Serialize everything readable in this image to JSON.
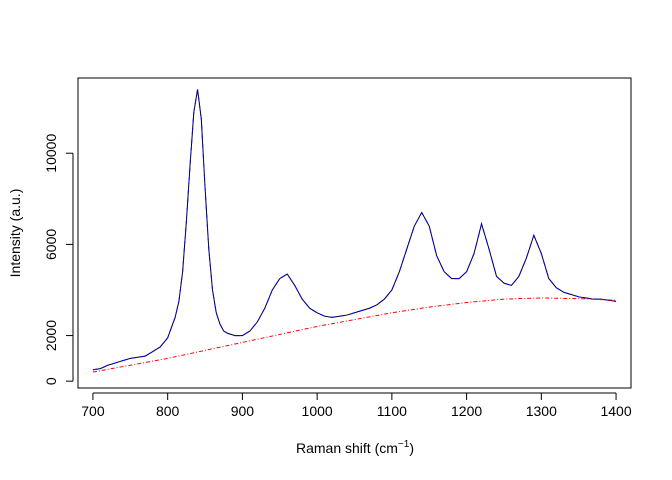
{
  "chart_data": {
    "type": "line",
    "title": "",
    "xlabel": "Raman shift (cm",
    "xlabel_superscript": "−1",
    "xlabel_suffix": ")",
    "ylabel": "Intensity (a.u.)",
    "xlim": [
      680,
      1420
    ],
    "ylim": [
      -300,
      13300
    ],
    "x_ticks": [
      700,
      800,
      900,
      1000,
      1100,
      1200,
      1300,
      1400
    ],
    "y_ticks": [
      0,
      2000,
      6000,
      10000
    ],
    "grid": false,
    "legend": "none",
    "series": [
      {
        "style": "solid",
        "color": "#000000",
        "x": [
          700,
          710,
          720,
          730,
          740,
          750,
          760,
          770,
          780,
          790,
          800,
          810,
          815,
          820,
          825,
          830,
          835,
          840,
          845,
          850,
          855,
          860,
          865,
          870,
          875,
          880,
          890,
          900,
          910,
          920,
          930,
          940,
          950,
          960,
          970,
          980,
          990,
          1000,
          1010,
          1020,
          1030,
          1040,
          1050,
          1060,
          1070,
          1080,
          1090,
          1100,
          1110,
          1120,
          1130,
          1140,
          1150,
          1160,
          1170,
          1180,
          1190,
          1200,
          1210,
          1220,
          1230,
          1240,
          1250,
          1260,
          1270,
          1280,
          1290,
          1300,
          1310,
          1320,
          1330,
          1340,
          1350,
          1360,
          1370,
          1380,
          1390,
          1400
        ],
        "values": [
          500,
          550,
          700,
          800,
          900,
          1000,
          1050,
          1100,
          1300,
          1500,
          1900,
          2800,
          3500,
          4800,
          7000,
          9500,
          11800,
          12800,
          11500,
          8500,
          5800,
          4000,
          3000,
          2500,
          2200,
          2100,
          2000,
          2000,
          2200,
          2600,
          3200,
          4000,
          4500,
          4700,
          4200,
          3600,
          3200,
          3000,
          2850,
          2800,
          2850,
          2900,
          3000,
          3100,
          3200,
          3350,
          3600,
          4000,
          4800,
          5800,
          6800,
          7400,
          6800,
          5500,
          4800,
          4500,
          4500,
          4800,
          5600,
          6900,
          5800,
          4600,
          4300,
          4200,
          4600,
          5400,
          6400,
          5600,
          4500,
          4100,
          3900,
          3800,
          3700,
          3650,
          3600,
          3600,
          3550,
          3500
        ]
      },
      {
        "style": "dashed",
        "color": "#0000ff",
        "x": [
          700,
          710,
          720,
          730,
          740,
          750,
          760,
          770,
          780,
          790,
          800,
          810,
          815,
          820,
          825,
          830,
          835,
          840,
          845,
          850,
          855,
          860,
          865,
          870,
          875,
          880,
          890,
          900,
          910,
          920,
          930,
          940,
          950,
          960,
          970,
          980,
          990,
          1000,
          1010,
          1020,
          1030,
          1040,
          1050,
          1060,
          1070,
          1080,
          1090,
          1100,
          1110,
          1120,
          1130,
          1140,
          1150,
          1160,
          1170,
          1180,
          1190,
          1200,
          1210,
          1220,
          1230,
          1240,
          1250,
          1260,
          1270,
          1280,
          1290,
          1300,
          1310,
          1320,
          1330,
          1340,
          1350,
          1360,
          1370,
          1380,
          1390,
          1400
        ],
        "values": [
          500,
          550,
          700,
          800,
          900,
          1000,
          1050,
          1100,
          1300,
          1500,
          1900,
          2800,
          3500,
          4800,
          7000,
          9500,
          11800,
          12800,
          11500,
          8500,
          5800,
          4000,
          3000,
          2500,
          2200,
          2100,
          2000,
          2000,
          2200,
          2600,
          3200,
          4000,
          4500,
          4700,
          4200,
          3600,
          3200,
          3000,
          2850,
          2800,
          2850,
          2900,
          3000,
          3100,
          3200,
          3350,
          3600,
          4000,
          4800,
          5800,
          6800,
          7400,
          6800,
          5500,
          4800,
          4500,
          4500,
          4800,
          5600,
          6900,
          5800,
          4600,
          4300,
          4200,
          4600,
          5400,
          6400,
          5600,
          4500,
          4100,
          3900,
          3800,
          3700,
          3650,
          3600,
          3600,
          3550,
          3500
        ]
      },
      {
        "style": "dash-dot",
        "color": "#ff0000",
        "x": [
          700,
          750,
          800,
          850,
          900,
          950,
          1000,
          1050,
          1100,
          1150,
          1200,
          1250,
          1300,
          1350,
          1400
        ],
        "values": [
          400,
          700,
          1000,
          1350,
          1700,
          2050,
          2400,
          2700,
          3000,
          3250,
          3450,
          3600,
          3650,
          3620,
          3550
        ]
      }
    ]
  }
}
